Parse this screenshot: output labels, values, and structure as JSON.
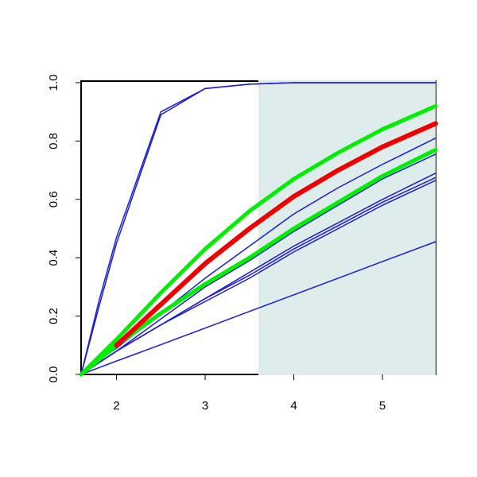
{
  "chart_data": {
    "type": "line",
    "x": [
      1.6,
      1.8,
      2.0,
      2.5,
      3.0,
      3.5,
      4.0,
      4.5,
      5.0,
      5.6
    ],
    "xlim": [
      1.6,
      5.6
    ],
    "ylim": [
      0,
      1
    ],
    "xticks": [
      2,
      3,
      4,
      5
    ],
    "yticks": [
      {
        "value": 0,
        "label": "0.0"
      },
      {
        "value": 0.2,
        "label": "0.2"
      },
      {
        "value": 0.4,
        "label": "0.4"
      },
      {
        "value": 0.6,
        "label": "0.6"
      },
      {
        "value": 0.8,
        "label": "0.8"
      },
      {
        "value": 1,
        "label": "1.0"
      }
    ],
    "shaded_region": {
      "xlim": [
        3.6,
        5.6
      ],
      "color": "#deecec"
    },
    "series": [
      {
        "color": "#1c1cd0",
        "width": 1.5,
        "values": [
          0,
          0.25,
          0.47,
          0.9,
          0.98,
          0.995,
          1,
          1,
          1,
          1
        ]
      },
      {
        "color": "#1c1cd0",
        "width": 1.5,
        "values": [
          0,
          0.23,
          0.45,
          0.89,
          0.98,
          0.995,
          1,
          1,
          1,
          1
        ]
      },
      {
        "color": "#1c1cd0",
        "width": 1.5,
        "values": [
          0,
          0.05,
          0.1,
          0.24,
          0.38,
          0.5,
          0.61,
          0.7,
          0.78,
          0.86
        ]
      },
      {
        "color": "#1c1cd0",
        "width": 1.5,
        "values": [
          0,
          0.05,
          0.09,
          0.21,
          0.33,
          0.44,
          0.55,
          0.64,
          0.72,
          0.81
        ]
      },
      {
        "color": "#1c1cd0",
        "width": 1.5,
        "values": [
          0,
          0.04,
          0.08,
          0.19,
          0.3,
          0.39,
          0.49,
          0.58,
          0.67,
          0.755
        ]
      },
      {
        "color": "#1c1cd0",
        "width": 1.5,
        "values": [
          0,
          0.04,
          0.08,
          0.17,
          0.26,
          0.35,
          0.44,
          0.52,
          0.6,
          0.69
        ]
      },
      {
        "color": "#1c1cd0",
        "width": 1.5,
        "values": [
          0,
          0.04,
          0.08,
          0.17,
          0.26,
          0.34,
          0.43,
          0.51,
          0.59,
          0.675
        ]
      },
      {
        "color": "#1c1cd0",
        "width": 1.5,
        "values": [
          0,
          0.04,
          0.08,
          0.17,
          0.25,
          0.33,
          0.42,
          0.5,
          0.58,
          0.665
        ]
      },
      {
        "color": "#1c1cd0",
        "width": 1.5,
        "values": [
          0,
          0.023,
          0.046,
          0.102,
          0.159,
          0.216,
          0.273,
          0.33,
          0.387,
          0.455
        ]
      },
      {
        "color": "#00ee00",
        "width": 5,
        "values": [
          0,
          0.06,
          0.12,
          0.28,
          0.43,
          0.56,
          0.67,
          0.76,
          0.84,
          0.92
        ]
      },
      {
        "color": "#00ee00",
        "width": 5,
        "values": [
          0,
          0.05,
          0.1,
          0.21,
          0.31,
          0.4,
          0.5,
          0.59,
          0.68,
          0.77
        ]
      },
      {
        "color": "#ee0000",
        "width": 6,
        "values": [
          null,
          null,
          0.1,
          0.24,
          0.38,
          0.5,
          0.61,
          0.7,
          0.78,
          0.86
        ]
      }
    ]
  }
}
